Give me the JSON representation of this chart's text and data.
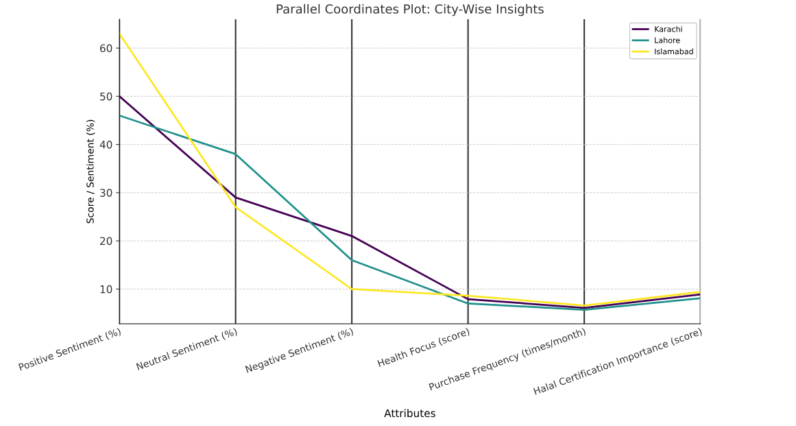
{
  "chart_data": {
    "type": "line",
    "title": "Parallel Coordinates Plot: City-Wise Insights",
    "xlabel": "Attributes",
    "ylabel": "Score / Sentiment (%)",
    "categories": [
      "Positive Sentiment (%)",
      "Neutral Sentiment (%)",
      "Negative Sentiment (%)",
      "Health Focus (score)",
      "Purchase Frequency (times/month)",
      "Halal Certification Importance (score)"
    ],
    "series": [
      {
        "name": "Karachi",
        "color": "#440154",
        "values": [
          50,
          29,
          21,
          7.9,
          6.1,
          8.9
        ]
      },
      {
        "name": "Lahore",
        "color": "#21918c",
        "values": [
          46,
          38,
          16,
          7.0,
          5.7,
          8.1
        ]
      },
      {
        "name": "Islamabad",
        "color": "#fde725",
        "values": [
          63,
          27,
          10,
          8.6,
          6.6,
          9.4
        ]
      }
    ],
    "ylim": [
      2.8,
      66
    ],
    "yticks": [
      10,
      20,
      30,
      40,
      50,
      60
    ],
    "grid": true,
    "legend": "top right",
    "marker": "none",
    "line_style": "solid"
  }
}
